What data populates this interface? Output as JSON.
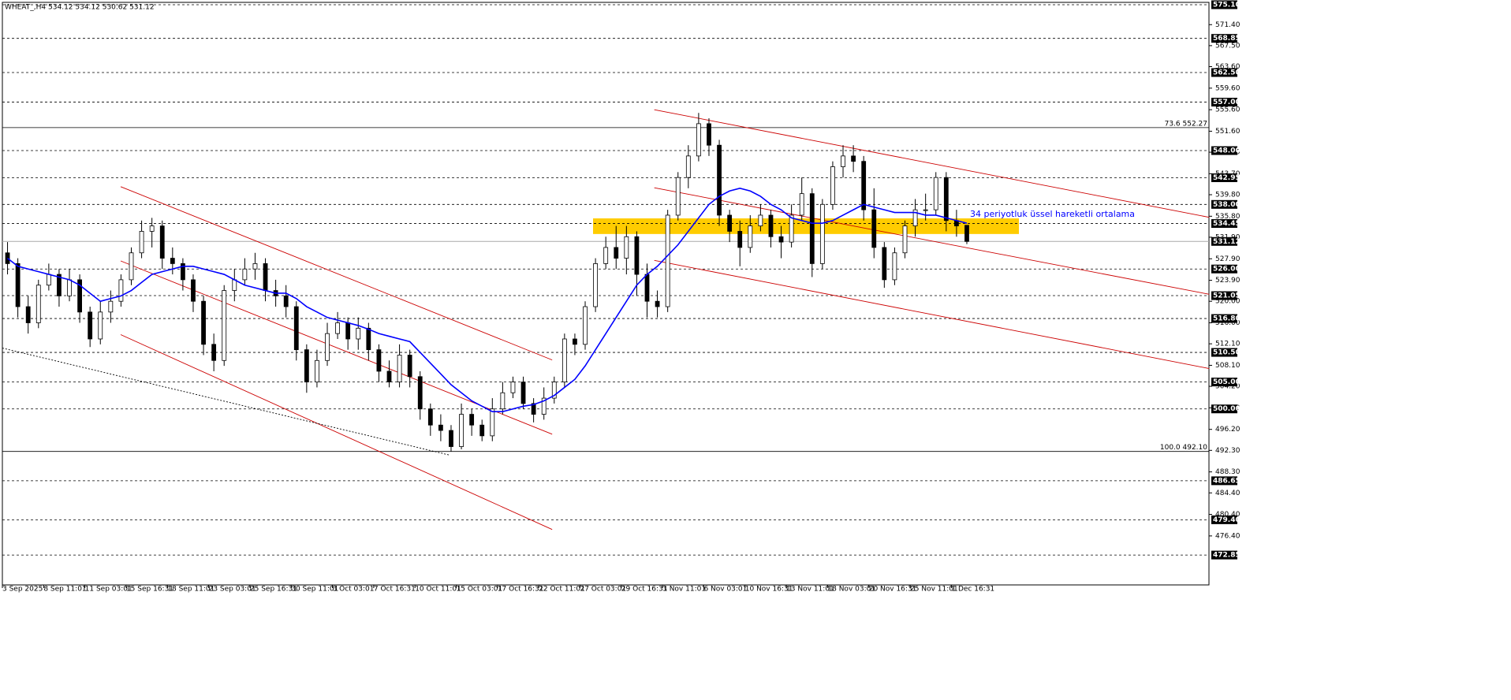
{
  "chart_data": {
    "type": "candlestick",
    "title": "WHEAT_,H4  534.12 534.12 530.62 531.12",
    "annotation": "34 periyotluk üssel hareketli ortalama",
    "ylim": [
      467.3,
      575.54
    ],
    "yticks": [
      {
        "value": 571.4,
        "label": "571.40"
      },
      {
        "value": 567.5,
        "label": "567.50"
      },
      {
        "value": 563.6,
        "label": "563.60"
      },
      {
        "value": 559.6,
        "label": "559.60"
      },
      {
        "value": 555.6,
        "label": "555.60"
      },
      {
        "value": 551.6,
        "label": "551.60"
      },
      {
        "value": 547.7,
        "label": "547.70"
      },
      {
        "value": 543.7,
        "label": "543.70"
      },
      {
        "value": 539.8,
        "label": "539.80"
      },
      {
        "value": 535.8,
        "label": "535.80"
      },
      {
        "value": 531.9,
        "label": "531.90"
      },
      {
        "value": 527.9,
        "label": "527.90"
      },
      {
        "value": 523.9,
        "label": "523.90"
      },
      {
        "value": 520,
        "label": "520.00"
      },
      {
        "value": 516,
        "label": "516.00"
      },
      {
        "value": 512.1,
        "label": "512.10"
      },
      {
        "value": 508.1,
        "label": "508.10"
      },
      {
        "value": 504.2,
        "label": "504.20"
      },
      {
        "value": 500.2,
        "label": "500.20"
      },
      {
        "value": 496.2,
        "label": "496.20"
      },
      {
        "value": 492.3,
        "label": "492.30"
      },
      {
        "value": 488.3,
        "label": "488.30"
      },
      {
        "value": 484.4,
        "label": "484.40"
      },
      {
        "value": 480.4,
        "label": "480.40"
      },
      {
        "value": 476.4,
        "label": "476.40"
      }
    ],
    "xticks": [
      {
        "value": 0,
        "label": "3 Sep 2025"
      },
      {
        "value": 4,
        "label": "8 Sep 11:01"
      },
      {
        "value": 8,
        "label": "11 Sep 03:01"
      },
      {
        "value": 12,
        "label": "15 Sep 16:31"
      },
      {
        "value": 16,
        "label": "18 Sep 11:01"
      },
      {
        "value": 20,
        "label": "23 Sep 03:01"
      },
      {
        "value": 24,
        "label": "25 Sep 16:31"
      },
      {
        "value": 28,
        "label": "30 Sep 11:01"
      },
      {
        "value": 32,
        "label": "3 Oct 03:01"
      },
      {
        "value": 36,
        "label": "7 Oct 16:31"
      },
      {
        "value": 40,
        "label": "10 Oct 11:01"
      },
      {
        "value": 44,
        "label": "15 Oct 03:01"
      },
      {
        "value": 48,
        "label": "17 Oct 16:31"
      },
      {
        "value": 52,
        "label": "22 Oct 11:01"
      },
      {
        "value": 56,
        "label": "27 Oct 03:01"
      },
      {
        "value": 60,
        "label": "29 Oct 16:31"
      },
      {
        "value": 64,
        "label": "3 Nov 11:01"
      },
      {
        "value": 68,
        "label": "6 Nov 03:01"
      },
      {
        "value": 72,
        "label": "10 Nov 16:31"
      },
      {
        "value": 76,
        "label": "13 Nov 11:01"
      },
      {
        "value": 80,
        "label": "18 Nov 03:01"
      },
      {
        "value": 84,
        "label": "20 Nov 16:31"
      },
      {
        "value": 88,
        "label": "25 Nov 11:01"
      },
      {
        "value": 92,
        "label": "1 Dec 16:31"
      }
    ],
    "ohlc": {
      "open": [
        529,
        527,
        519,
        516,
        523,
        525,
        521,
        524,
        518,
        513,
        518,
        520,
        524,
        529,
        533,
        534,
        528,
        527,
        524,
        520,
        512,
        509,
        522,
        524,
        526,
        527,
        522,
        521,
        519,
        511,
        505,
        509,
        514,
        516,
        513,
        515,
        511,
        507,
        505,
        510,
        506,
        500,
        497,
        496,
        493,
        499,
        497,
        495,
        500,
        503,
        505,
        501,
        499,
        502,
        505,
        513,
        512,
        519,
        527,
        530,
        528,
        532,
        525,
        520,
        519,
        536,
        543,
        547,
        553,
        549,
        536,
        533,
        530,
        534,
        536,
        532,
        531,
        536,
        540,
        527,
        538,
        545,
        547,
        546,
        537,
        530,
        524,
        529,
        534,
        537,
        537,
        543,
        535,
        534.12
      ],
      "high": [
        531,
        528,
        521,
        524,
        527,
        526,
        526,
        525,
        519,
        520,
        522,
        525,
        530,
        535,
        535.5,
        535,
        530,
        528,
        525,
        521,
        514,
        523,
        526,
        528,
        529,
        528,
        524,
        523,
        520,
        512,
        511,
        516,
        518,
        517,
        517,
        516,
        512,
        509,
        512,
        511,
        507,
        501,
        499,
        497,
        501,
        500,
        498,
        502,
        505,
        506,
        506,
        502,
        504,
        506,
        514,
        514,
        520,
        528,
        532,
        534,
        534,
        533,
        527,
        522,
        537,
        544,
        549,
        555,
        554,
        550,
        537,
        535,
        536,
        538,
        537,
        534,
        538,
        543,
        541,
        539,
        546,
        549,
        549,
        547,
        541,
        531,
        530,
        535,
        539,
        540,
        544,
        544,
        537,
        534.12
      ],
      "low": [
        525,
        517,
        514,
        515,
        522,
        519,
        520,
        516,
        511.5,
        512,
        516,
        519,
        523,
        528,
        530,
        526,
        525,
        522,
        518,
        510,
        507,
        508,
        520,
        523,
        524,
        520,
        519,
        517,
        509,
        503,
        504,
        508,
        513,
        511,
        511,
        509,
        505,
        504,
        504,
        504,
        498,
        495,
        494,
        492.1,
        492.5,
        495,
        494,
        494,
        499,
        502,
        500,
        497.5,
        498,
        501,
        504,
        510,
        511,
        518,
        526,
        526,
        525,
        521,
        517,
        517,
        518,
        535,
        541,
        546,
        547,
        534,
        531,
        526.5,
        529,
        533,
        530,
        528,
        530,
        535,
        524.5,
        526,
        537,
        543,
        544,
        535,
        528,
        522.5,
        523,
        528,
        532,
        535,
        536,
        533,
        532,
        530.62
      ],
      "close": [
        527,
        519,
        516,
        523,
        525,
        521,
        524,
        518,
        513,
        518,
        520,
        524,
        529,
        533,
        534,
        528,
        527,
        524,
        520,
        512,
        509,
        522,
        524,
        526,
        527,
        522,
        521,
        519,
        511,
        505,
        509,
        514,
        516,
        513,
        515,
        511,
        507,
        505,
        510,
        506,
        500,
        497,
        496,
        493,
        499,
        497,
        495,
        500,
        503,
        505,
        501,
        499,
        502,
        505,
        513,
        512,
        519,
        527,
        530,
        528,
        532,
        525,
        520,
        519,
        536,
        543,
        547,
        553,
        549,
        536,
        533,
        530,
        534,
        536,
        532,
        531,
        536,
        540,
        527,
        538,
        545,
        547,
        546,
        537,
        530,
        524,
        529,
        534,
        537,
        537,
        543,
        535,
        534,
        531.12
      ]
    },
    "ema": {
      "color": "#0000ff",
      "values": [
        528,
        526.5,
        526,
        525.5,
        525,
        524.5,
        524,
        523,
        521.5,
        520,
        520.5,
        521,
        522,
        523.5,
        525,
        525.5,
        526,
        526.5,
        526.5,
        526,
        525.5,
        525,
        524,
        523,
        522.5,
        522,
        521.5,
        521.5,
        520.5,
        519,
        518,
        517,
        516.5,
        516,
        515.5,
        514.8,
        514,
        513.5,
        513,
        512.5,
        510.5,
        508.5,
        506.5,
        504.5,
        503,
        501.5,
        500.5,
        499.5,
        499.5,
        500,
        500.5,
        500.8,
        501.5,
        502.5,
        504,
        505.5,
        508,
        511,
        514,
        517,
        520,
        523,
        525,
        526.5,
        528.5,
        530.5,
        533,
        535.5,
        538,
        539.5,
        540.5,
        541,
        540.5,
        539.5,
        538,
        537,
        535.5,
        535,
        534.5,
        534.5,
        535,
        536,
        537,
        538,
        537.5,
        537,
        536.5,
        536.5,
        536.5,
        536,
        536,
        535.5,
        535,
        534.5
      ]
    },
    "levels": [
      {
        "value": 575.1,
        "label": "575.10"
      },
      568.85,
      {
        "value": 562.5,
        "label": "562.50"
      },
      {
        "value": 557,
        "label": "557.00"
      },
      {
        "value": 548,
        "label": "548.00"
      },
      542.95,
      {
        "value": 538,
        "label": "538.00"
      },
      534.45,
      {
        "value": 526,
        "label": "526.00"
      },
      521.05,
      {
        "value": 516.8,
        "label": "516.80"
      },
      {
        "value": 510.5,
        "label": "510.50"
      },
      {
        "value": 505,
        "label": "505.00"
      },
      {
        "value": 500,
        "label": "500.00"
      },
      486.65,
      {
        "value": 479.4,
        "label": "479.40"
      },
      472.85
    ],
    "last_price": 531.12,
    "fib_levels": [
      {
        "value": 552.27,
        "label": "73.6 552.27"
      },
      {
        "value": 492.1,
        "label": "100.0 492.10"
      }
    ],
    "zone": {
      "low": 532.5,
      "high": 535.4,
      "color": "#ffcc00"
    },
    "trendlines": [
      {
        "x1": 10.97,
        "y1": 541.3,
        "x2": 52.8,
        "y2": 509.1,
        "color": "#cc0000"
      },
      {
        "x1": 10.97,
        "y1": 527.5,
        "x2": 52.8,
        "y2": 495.3,
        "color": "#cc0000"
      },
      {
        "x1": 10.97,
        "y1": 513.8,
        "x2": 52.8,
        "y2": 477.6,
        "color": "#cc0000"
      },
      {
        "x1": 62.7,
        "y1": 555.6,
        "x2": 116.5,
        "y2": 535.6,
        "color": "#cc0000"
      },
      {
        "x1": 62.7,
        "y1": 541.1,
        "x2": 116.5,
        "y2": 521.3,
        "color": "#cc0000"
      },
      {
        "x1": 62.7,
        "y1": 527.6,
        "x2": 116.5,
        "y2": 507.5,
        "color": "#cc0000"
      },
      {
        "x1": -0.5,
        "y1": 511.3,
        "x2": 42.9,
        "y2": 491.4,
        "color": "#000000",
        "dashed": true
      }
    ]
  }
}
